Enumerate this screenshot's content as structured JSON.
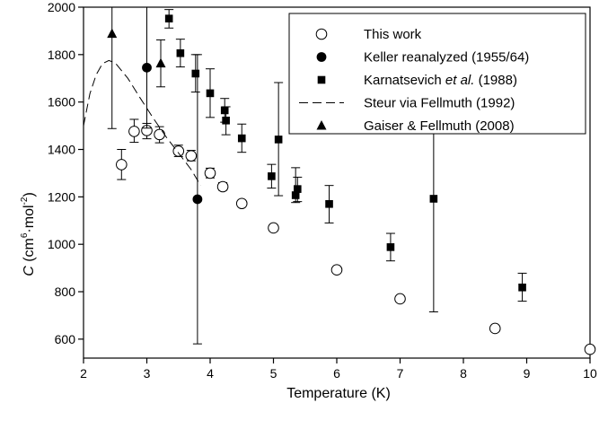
{
  "chart_data": {
    "type": "scatter",
    "title": "",
    "xlabel": "Temperature (K)",
    "ylabel": {
      "main": "C",
      "unit_prefix": " (cm",
      "unit_exp1": "6",
      "unit_mid": "·mol",
      "unit_exp2": "-2",
      "unit_suffix": ")"
    },
    "xlim": [
      2,
      10
    ],
    "ylim": [
      520,
      2000
    ],
    "xticks": [
      "2",
      "3",
      "4",
      "5",
      "6",
      "7",
      "8",
      "9",
      "10"
    ],
    "yticks": [
      "600",
      "800",
      "1000",
      "1200",
      "1400",
      "1600",
      "1800",
      "2000"
    ],
    "grid": false,
    "legend_position": "top-right",
    "series": [
      {
        "name": "This work",
        "marker": "open-circle",
        "points": [
          {
            "x": 2.6,
            "y": 1336,
            "err_low": 1273,
            "err_high": 1400
          },
          {
            "x": 2.8,
            "y": 1476,
            "err_low": 1430,
            "err_high": 1527
          },
          {
            "x": 3.0,
            "y": 1480,
            "err_low": 1445,
            "err_high": 1510
          },
          {
            "x": 3.2,
            "y": 1463,
            "err_low": 1428,
            "err_high": 1496
          },
          {
            "x": 3.5,
            "y": 1393,
            "err_low": 1370,
            "err_high": 1418
          },
          {
            "x": 3.7,
            "y": 1373,
            "err_low": 1352,
            "err_high": 1396
          },
          {
            "x": 4.0,
            "y": 1300,
            "err_low": 1280,
            "err_high": 1321
          },
          {
            "x": 4.2,
            "y": 1243,
            "err_low": 1228,
            "err_high": 1260
          },
          {
            "x": 4.5,
            "y": 1172
          },
          {
            "x": 5.0,
            "y": 1069
          },
          {
            "x": 6.0,
            "y": 892
          },
          {
            "x": 7.0,
            "y": 770
          },
          {
            "x": 8.5,
            "y": 645
          },
          {
            "x": 10.0,
            "y": 557
          }
        ]
      },
      {
        "name": "Keller reanalyzed (1955/64)",
        "marker": "filled-circle",
        "points": [
          {
            "x": 3.0,
            "y": 1745,
            "err_low": 1490,
            "err_high": 2000
          },
          {
            "x": 3.8,
            "y": 1190,
            "err_low": 580,
            "err_high": 1800
          }
        ]
      },
      {
        "name": "Karnatsevich et al. (1988)",
        "name_plain": "Karnatsevich ",
        "name_italic": "et al.",
        "name_rest": " (1988)",
        "marker": "filled-square",
        "points": [
          {
            "x": 3.35,
            "y": 1952,
            "err_low": 1912,
            "err_high": 1990
          },
          {
            "x": 3.53,
            "y": 1806,
            "err_low": 1748,
            "err_high": 1865
          },
          {
            "x": 3.77,
            "y": 1720,
            "err_low": 1642,
            "err_high": 1800
          },
          {
            "x": 4.0,
            "y": 1637,
            "err_low": 1535,
            "err_high": 1740
          },
          {
            "x": 4.23,
            "y": 1565,
            "err_low": 1515,
            "err_high": 1615
          },
          {
            "x": 4.25,
            "y": 1522,
            "err_low": 1462,
            "err_high": 1580
          },
          {
            "x": 4.5,
            "y": 1447,
            "err_low": 1388,
            "err_high": 1507
          },
          {
            "x": 4.97,
            "y": 1287,
            "err_low": 1237,
            "err_high": 1337
          },
          {
            "x": 5.08,
            "y": 1442,
            "err_low": 1205,
            "err_high": 1682
          },
          {
            "x": 5.35,
            "y": 1207,
            "err_low": 1176,
            "err_high": 1323
          },
          {
            "x": 5.38,
            "y": 1233,
            "err_low": 1180,
            "err_high": 1283
          },
          {
            "x": 5.88,
            "y": 1170,
            "err_low": 1090,
            "err_high": 1248
          },
          {
            "x": 6.85,
            "y": 988,
            "err_low": 930,
            "err_high": 1046
          },
          {
            "x": 7.53,
            "y": 1192,
            "err_low": 715,
            "err_high": 1670
          },
          {
            "x": 8.93,
            "y": 818,
            "err_low": 760,
            "err_high": 878
          }
        ]
      },
      {
        "name": "Steur via Fellmuth (1992)",
        "marker": "dashed-line",
        "points": [
          {
            "x": 2.0,
            "y": 1500
          },
          {
            "x": 2.1,
            "y": 1635
          },
          {
            "x": 2.2,
            "y": 1715
          },
          {
            "x": 2.3,
            "y": 1762
          },
          {
            "x": 2.4,
            "y": 1775
          },
          {
            "x": 2.5,
            "y": 1765
          },
          {
            "x": 2.7,
            "y": 1700
          },
          {
            "x": 2.9,
            "y": 1615
          },
          {
            "x": 3.1,
            "y": 1532
          },
          {
            "x": 3.3,
            "y": 1455
          },
          {
            "x": 3.5,
            "y": 1385
          },
          {
            "x": 3.7,
            "y": 1315
          },
          {
            "x": 3.85,
            "y": 1248
          }
        ]
      },
      {
        "name": "Gaiser & Fellmuth (2008)",
        "marker": "filled-triangle",
        "points": [
          {
            "x": 2.45,
            "y": 1888,
            "err_low": 1488,
            "err_high": 2000
          },
          {
            "x": 3.22,
            "y": 1763,
            "err_low": 1664,
            "err_high": 1862
          }
        ]
      }
    ]
  }
}
